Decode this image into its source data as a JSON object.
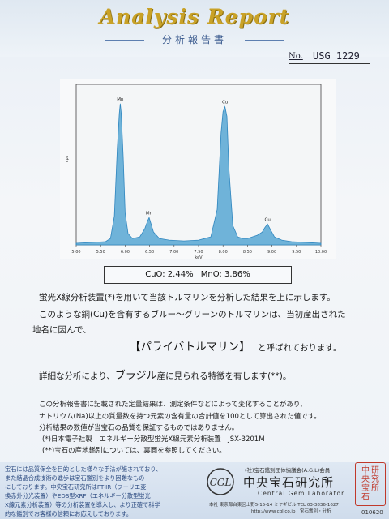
{
  "header": {
    "title": "Analysis   Report",
    "subtitle": "分析報告書",
    "no_label": "No.",
    "report_no": "USG 1229"
  },
  "chart_data": {
    "type": "line",
    "xlabel": "keV",
    "ylabel": "cps",
    "xlim": [
      5.0,
      10.0
    ],
    "ylim": [
      0,
      100
    ],
    "xticks": [
      "5.00",
      "5.50",
      "6.00",
      "6.50",
      "7.00",
      "7.50",
      "8.00",
      "8.50",
      "9.00",
      "9.50",
      "10.00"
    ],
    "peaks": [
      {
        "label": "Mn",
        "x": 5.9,
        "y": 88
      },
      {
        "label": "Mn",
        "x": 6.49,
        "y": 17
      },
      {
        "label": "Cu",
        "x": 8.04,
        "y": 86
      },
      {
        "label": "Cu",
        "x": 8.91,
        "y": 13
      }
    ],
    "series": [
      {
        "x": [
          5.0,
          5.3,
          5.6,
          5.7,
          5.78,
          5.84,
          5.88,
          5.9,
          5.92,
          5.96,
          6.0,
          6.06,
          6.15,
          6.3,
          6.4,
          6.46,
          6.49,
          6.52,
          6.58,
          6.7,
          6.9,
          7.2,
          7.5,
          7.75,
          7.88,
          7.96,
          8.0,
          8.04,
          8.08,
          8.12,
          8.2,
          8.3,
          8.4,
          8.5,
          8.6,
          8.7,
          8.8,
          8.86,
          8.91,
          8.96,
          9.05,
          9.2,
          9.4,
          9.7,
          10.0
        ],
        "y": [
          1,
          1.5,
          2,
          4,
          18,
          60,
          82,
          88,
          82,
          55,
          20,
          7,
          4,
          5,
          10,
          15,
          17,
          14,
          8,
          4,
          3,
          2.5,
          3,
          5,
          22,
          70,
          83,
          86,
          80,
          48,
          12,
          5,
          4,
          4,
          5,
          6,
          8,
          11,
          13,
          10,
          5,
          3,
          2,
          1.5,
          1
        ]
      }
    ]
  },
  "result": {
    "cuo": "CuO: 2.44%",
    "mno": "MnO: 3.86%"
  },
  "body": {
    "line1": "蛍光X線分析装置(*)を用いて当該トルマリンを分析した結果を上に示します。",
    "line2": "このような銅(Cu)を含有するブルー～グリーンのトルマリンは、当初産出された",
    "line3": "地名に因んで、",
    "name": "【パライバトルマリン】",
    "line4": "と呼ばれております。",
    "line5a": "詳細な分析により、",
    "country": "ブラジル",
    "line5b": "産に見られる特徴を有します(**)。"
  },
  "notes": {
    "n1": "この分析報告書に記載された定量結果は、測定条件などによって変化することがあり、",
    "n2": "ナトリウム(Na)以上の質量数を持つ元素の含有量の合計値を100として算出された値です。",
    "n3": "分析結果の数値が当宝石の品質を保証するものではありません。",
    "n4": "(*)日本電子社製　エネルギー分散型蛍光X線元素分析装置　JSX-3201M",
    "n5": "(**)宝石の産地鑑別については、裏面を参照してください。"
  },
  "footer": {
    "f1": "宝石には品質保全を目的とした様々な手法が施されており、",
    "f2": "また結晶合成技術の進歩は宝石鑑別をより困難なもの",
    "f3": "にしております。中央宝石研究所はFT-IR（フーリエ変",
    "f4": "換赤外分光装置）やEDS型XRF（エネルギー分散型蛍光",
    "f5": "X線元素分析装置）等の分析装置を導入し、より正確で科学",
    "f6": "的な鑑別でお客様の信頼にお応えしております。",
    "assoc": "(社)宝石鑑別団体協議会(A.G.L)会員",
    "lab_name": "中央宝石研究所",
    "lab_en": "Central Gem Laborator",
    "address": "本社 東京都台東区上野5-15-14 ミヤギビル TEL 03-3836-1627",
    "web": "http://www.cgl.co.jp　宝石鑑別・分析",
    "seal": "中央宝石研究所",
    "serial": "010620"
  }
}
